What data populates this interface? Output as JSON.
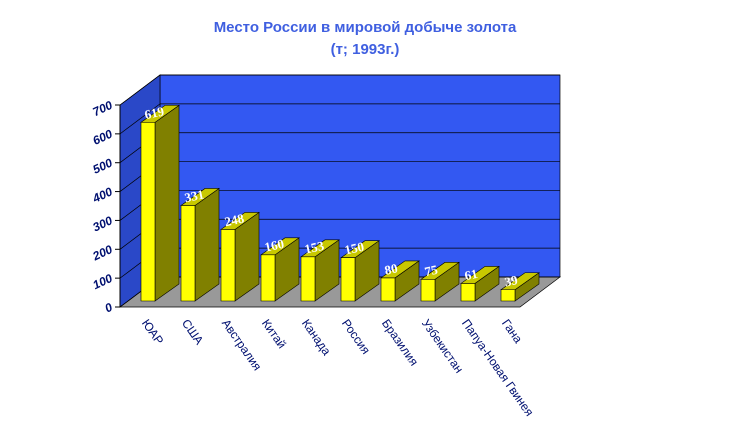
{
  "chart_data": {
    "type": "bar3d",
    "title": "Место России в мировой добыче золота",
    "subtitle": "(т; 1993г.)",
    "categories": [
      "ЮАР",
      "США",
      "Австралия",
      "Китай",
      "Канада",
      "Россия",
      "Бразилия",
      "Узбекистан",
      "Папуа-Новая Гвинея",
      "Гана"
    ],
    "values": [
      619,
      331,
      248,
      160,
      153,
      150,
      80,
      75,
      61,
      39
    ],
    "color": "#ffff00",
    "ylim": [
      0,
      700
    ],
    "yticks": [
      0,
      100,
      200,
      300,
      400,
      500,
      600,
      700
    ],
    "grid": true
  }
}
